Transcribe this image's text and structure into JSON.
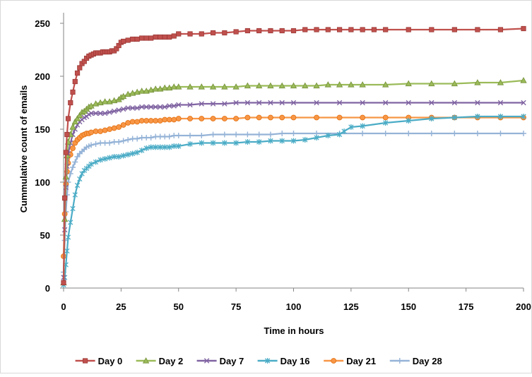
{
  "chart_data": {
    "type": "line",
    "title": "",
    "xlabel": "Time in hours",
    "ylabel": "Cummulative count of emails",
    "xlim": [
      0,
      200
    ],
    "ylim": [
      0,
      260
    ],
    "xticks": [
      "0",
      "25",
      "50",
      "75",
      "100",
      "125",
      "150",
      "175",
      "200"
    ],
    "yticks": [
      "0",
      "50",
      "100",
      "150",
      "200",
      "250"
    ],
    "grid": false,
    "legend_position": "bottom",
    "series": [
      {
        "name": "Day 0",
        "color": "#c0504d",
        "marker": "square",
        "x": [
          0,
          0.5,
          1,
          1.5,
          2,
          3,
          4,
          5,
          6,
          7,
          8,
          9,
          10,
          11,
          12,
          13,
          14,
          15,
          16,
          17,
          18,
          19,
          20,
          21,
          22,
          23,
          24,
          25,
          26,
          28,
          30,
          32,
          34,
          36,
          38,
          40,
          42,
          44,
          46,
          48,
          50,
          55,
          60,
          65,
          70,
          75,
          80,
          85,
          90,
          95,
          100,
          105,
          110,
          115,
          120,
          125,
          130,
          135,
          140,
          150,
          160,
          170,
          180,
          190,
          200
        ],
        "y": [
          5,
          85,
          128,
          145,
          160,
          175,
          185,
          195,
          203,
          208,
          212,
          214,
          217,
          219,
          220,
          221,
          222,
          222,
          222,
          223,
          223,
          223,
          223,
          224,
          224,
          226,
          229,
          232,
          233,
          234,
          235,
          235,
          236,
          236,
          236,
          237,
          237,
          237,
          237,
          238,
          240,
          240,
          240,
          241,
          241,
          242,
          243,
          243,
          243,
          243,
          243,
          244,
          244,
          244,
          244,
          244,
          244,
          244,
          244,
          244,
          244,
          244,
          244,
          244,
          245
        ]
      },
      {
        "name": "Day 2",
        "color": "#9bbb59",
        "marker": "triangle",
        "x": [
          0,
          0.5,
          1,
          1.5,
          2,
          3,
          4,
          5,
          6,
          7,
          8,
          9,
          10,
          11,
          12,
          14,
          16,
          18,
          20,
          22,
          24,
          25,
          26,
          28,
          30,
          32,
          34,
          36,
          38,
          40,
          42,
          44,
          46,
          48,
          50,
          55,
          60,
          65,
          70,
          75,
          80,
          85,
          90,
          95,
          100,
          105,
          110,
          115,
          120,
          125,
          130,
          140,
          150,
          160,
          170,
          180,
          190,
          200
        ],
        "y": [
          5,
          65,
          105,
          125,
          138,
          145,
          152,
          157,
          160,
          163,
          166,
          167,
          169,
          171,
          172,
          174,
          175,
          176,
          176,
          177,
          178,
          180,
          181,
          183,
          184,
          185,
          186,
          186,
          187,
          188,
          188,
          189,
          189,
          190,
          190,
          190,
          190,
          190,
          190,
          190,
          191,
          191,
          191,
          191,
          191,
          191,
          191,
          192,
          192,
          192,
          192,
          192,
          193,
          193,
          193,
          194,
          194,
          196
        ]
      },
      {
        "name": "Day 7",
        "color": "#8064a2",
        "marker": "x",
        "x": [
          0,
          0.5,
          1,
          1.5,
          2,
          3,
          4,
          5,
          6,
          7,
          8,
          9,
          10,
          11,
          12,
          14,
          16,
          18,
          20,
          22,
          24,
          26,
          28,
          30,
          32,
          34,
          36,
          38,
          40,
          42,
          44,
          46,
          48,
          50,
          55,
          60,
          65,
          70,
          75,
          80,
          85,
          90,
          95,
          100,
          110,
          120,
          130,
          140,
          150,
          160,
          170,
          180,
          190,
          200
        ],
        "y": [
          10,
          55,
          95,
          115,
          127,
          137,
          145,
          150,
          154,
          157,
          159,
          161,
          162,
          164,
          165,
          165,
          165,
          165,
          166,
          167,
          168,
          169,
          170,
          170,
          170,
          171,
          171,
          171,
          171,
          171,
          171,
          172,
          172,
          173,
          173,
          174,
          174,
          174,
          175,
          175,
          175,
          175,
          175,
          175,
          175,
          175,
          175,
          175,
          175,
          175,
          175,
          175,
          175,
          175
        ]
      },
      {
        "name": "Day 16",
        "color": "#4bacc6",
        "marker": "star",
        "x": [
          0,
          0.5,
          1,
          1.5,
          2,
          3,
          4,
          5,
          6,
          7,
          8,
          9,
          10,
          11,
          12,
          14,
          16,
          18,
          20,
          22,
          24,
          26,
          28,
          30,
          32,
          34,
          36,
          38,
          40,
          42,
          44,
          46,
          48,
          50,
          55,
          60,
          65,
          70,
          75,
          80,
          85,
          90,
          95,
          100,
          105,
          110,
          115,
          120,
          122,
          125,
          130,
          140,
          150,
          160,
          170,
          180,
          190,
          200
        ],
        "y": [
          3,
          10,
          22,
          35,
          48,
          62,
          75,
          88,
          97,
          103,
          108,
          111,
          113,
          115,
          117,
          119,
          121,
          122,
          123,
          124,
          124,
          125,
          126,
          127,
          128,
          130,
          132,
          133,
          133,
          133,
          133,
          133,
          134,
          134,
          136,
          137,
          137,
          137,
          137,
          138,
          138,
          139,
          139,
          139,
          140,
          142,
          144,
          145,
          148,
          152,
          153,
          156,
          158,
          160,
          161,
          162,
          162,
          162
        ]
      },
      {
        "name": "Day 21",
        "color": "#f79646",
        "marker": "circle",
        "x": [
          0,
          0.5,
          1,
          1.5,
          2,
          3,
          4,
          5,
          6,
          7,
          8,
          9,
          10,
          11,
          12,
          14,
          16,
          18,
          20,
          22,
          24,
          26,
          28,
          30,
          32,
          34,
          36,
          38,
          40,
          42,
          44,
          46,
          48,
          50,
          55,
          60,
          65,
          70,
          75,
          80,
          85,
          90,
          95,
          100,
          110,
          120,
          130,
          140,
          150,
          160,
          170,
          180,
          190,
          200
        ],
        "y": [
          30,
          70,
          98,
          110,
          118,
          126,
          132,
          137,
          140,
          142,
          144,
          145,
          146,
          146,
          147,
          148,
          148,
          149,
          150,
          151,
          152,
          154,
          156,
          157,
          157,
          158,
          158,
          158,
          158,
          158,
          159,
          159,
          159,
          160,
          160,
          160,
          160,
          160,
          160,
          161,
          161,
          161,
          161,
          161,
          161,
          161,
          161,
          161,
          161,
          161,
          161,
          161,
          161,
          161
        ]
      },
      {
        "name": "Day 28",
        "color": "#95b3d7",
        "marker": "plus",
        "x": [
          0,
          0.5,
          1,
          1.5,
          2,
          3,
          4,
          5,
          6,
          7,
          8,
          9,
          10,
          11,
          12,
          14,
          16,
          18,
          20,
          22,
          24,
          26,
          28,
          30,
          32,
          34,
          36,
          38,
          40,
          42,
          44,
          46,
          48,
          50,
          55,
          60,
          65,
          70,
          75,
          80,
          85,
          90,
          95,
          100,
          110,
          120,
          130,
          140,
          150,
          160,
          170,
          180,
          190,
          200
        ],
        "y": [
          15,
          45,
          72,
          88,
          100,
          108,
          114,
          119,
          124,
          127,
          129,
          131,
          133,
          134,
          135,
          136,
          137,
          137,
          137,
          138,
          138,
          139,
          140,
          141,
          141,
          142,
          142,
          142,
          143,
          143,
          143,
          143,
          144,
          144,
          144,
          144,
          145,
          145,
          145,
          145,
          145,
          145,
          146,
          146,
          146,
          146,
          146,
          146,
          146,
          146,
          146,
          146,
          146,
          146
        ]
      }
    ]
  }
}
